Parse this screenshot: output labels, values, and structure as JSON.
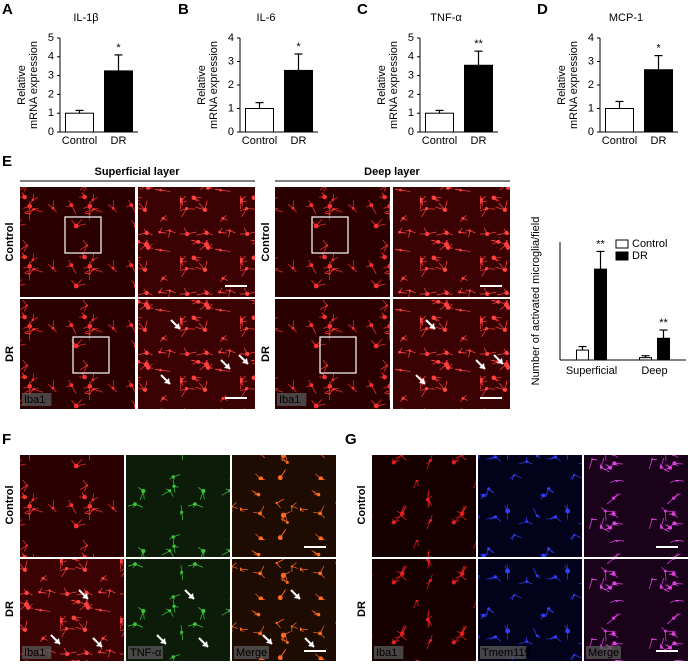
{
  "chart_data": [
    {
      "type": "bar",
      "title": "IL-1β",
      "ylabel": [
        "Relative",
        "mRNA expression"
      ],
      "categories": [
        "Control",
        "DR"
      ],
      "values": [
        1.0,
        3.25
      ],
      "errors": [
        0.15,
        0.85
      ],
      "colors": [
        "#ffffff",
        "#000000"
      ],
      "ylim": [
        0,
        5
      ],
      "yticks": [
        0,
        1,
        2,
        3,
        4,
        5
      ],
      "annotations": [
        {
          "category": "DR",
          "text": "*"
        }
      ]
    },
    {
      "type": "bar",
      "title": "IL-6",
      "ylabel": [
        "Relative",
        "mRNA expression"
      ],
      "categories": [
        "Control",
        "DR"
      ],
      "values": [
        1.0,
        2.62
      ],
      "errors": [
        0.25,
        0.7
      ],
      "colors": [
        "#ffffff",
        "#000000"
      ],
      "ylim": [
        0,
        4
      ],
      "yticks": [
        0,
        1,
        2,
        3,
        4
      ],
      "annotations": [
        {
          "category": "DR",
          "text": "*"
        }
      ]
    },
    {
      "type": "bar",
      "title": "TNF-α",
      "ylabel": [
        "Relative",
        "mRNA expression"
      ],
      "categories": [
        "Control",
        "DR"
      ],
      "values": [
        1.0,
        3.55
      ],
      "errors": [
        0.15,
        0.75
      ],
      "colors": [
        "#ffffff",
        "#000000"
      ],
      "ylim": [
        0,
        5
      ],
      "yticks": [
        0,
        1,
        2,
        3,
        4,
        5
      ],
      "annotations": [
        {
          "category": "DR",
          "text": "**"
        }
      ]
    },
    {
      "type": "bar",
      "title": "MCP-1",
      "ylabel": [
        "Relative",
        "mRNA expression"
      ],
      "categories": [
        "Control",
        "DR"
      ],
      "values": [
        1.0,
        2.65
      ],
      "errors": [
        0.3,
        0.6
      ],
      "colors": [
        "#ffffff",
        "#000000"
      ],
      "ylim": [
        0,
        4
      ],
      "yticks": [
        0,
        1,
        2,
        3,
        4
      ],
      "annotations": [
        {
          "category": "DR",
          "text": "*"
        }
      ]
    },
    {
      "type": "grouped-bar",
      "ylabel": [
        "Number of activated microglia/field"
      ],
      "categories": [
        "Superficial",
        "Deep"
      ],
      "series": [
        {
          "name": "Control",
          "color": "#ffffff",
          "values": [
            4.2,
            1.0
          ],
          "errors": [
            1.5,
            0.8
          ]
        },
        {
          "name": "DR",
          "color": "#000000",
          "values": [
            38.5,
            9.2
          ],
          "errors": [
            7.5,
            3.5
          ]
        }
      ],
      "ylim": [
        0,
        50
      ],
      "legend": "top-right",
      "annotations": [
        {
          "category": "Superficial",
          "text": "**"
        },
        {
          "category": "Deep",
          "text": "**"
        }
      ]
    }
  ],
  "figure": {
    "panel_labels": [
      "A",
      "B",
      "C",
      "D",
      "E",
      "F",
      "G"
    ],
    "E": {
      "headers": [
        "Superficial layer",
        "Deep layer"
      ],
      "rows": [
        "Control",
        "DR"
      ],
      "stain": "Iba1"
    },
    "F": {
      "rows": [
        "Control",
        "DR"
      ],
      "stains": [
        "Iba1",
        "TNF-α",
        "Merge"
      ]
    },
    "G": {
      "rows": [
        "Control",
        "DR"
      ],
      "stains": [
        "Iba1",
        "Tmem119",
        "Merge"
      ]
    }
  }
}
